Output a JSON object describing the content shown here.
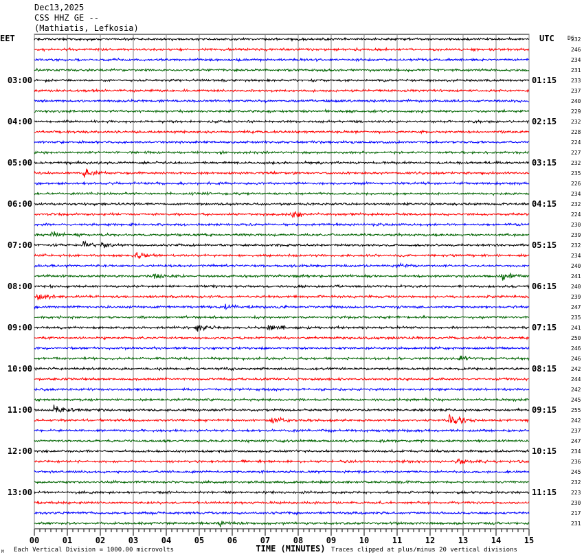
{
  "header": {
    "date": "Dec13,2025",
    "station": "CSS HHZ GE --",
    "location": "(Mathiatis, Lefkosia)"
  },
  "left_timezone": "EET",
  "right_timezone": "UTC",
  "dc_label": "DC",
  "footer": {
    "vertical_division": "Each Vertical Division = 1000.00 microvolts",
    "xlabel": "TIME (MINUTES)",
    "clip_note": "Traces clipped at plus/minus 20 vertical divisions",
    "corner_mark": "M"
  },
  "colors": {
    "trace_cycle": [
      "#000000",
      "#ff0000",
      "#0000ff",
      "#006400"
    ],
    "grid": "#808080"
  },
  "chart_data": {
    "type": "line",
    "description_kind": "helicorder",
    "x_ticks": [
      "00",
      "01",
      "02",
      "03",
      "04",
      "05",
      "06",
      "07",
      "08",
      "09",
      "10",
      "11",
      "12",
      "13",
      "14",
      "15"
    ],
    "xlim": [
      0,
      15
    ],
    "left_hour_labels": [
      "03:00",
      "04:00",
      "05:00",
      "06:00",
      "07:00",
      "08:00",
      "09:00",
      "10:00",
      "11:00",
      "12:00",
      "13:00"
    ],
    "right_hour_labels": [
      "01:15",
      "02:15",
      "03:15",
      "04:15",
      "05:15",
      "06:15",
      "07:15",
      "08:15",
      "09:15",
      "10:15",
      "11:15"
    ],
    "trace_count": 48,
    "dc_offsets": [
      232,
      246,
      234,
      231,
      233,
      237,
      240,
      229,
      232,
      228,
      224,
      227,
      232,
      235,
      226,
      234,
      232,
      224,
      230,
      239,
      232,
      234,
      240,
      241,
      240,
      239,
      247,
      235,
      241,
      250,
      246,
      246,
      242,
      244,
      242,
      245,
      255,
      242,
      237,
      247,
      234,
      236,
      245,
      232,
      223,
      230,
      217,
      231
    ],
    "events": [
      {
        "trace": 13,
        "minute": 1.5,
        "amp": 2.2
      },
      {
        "trace": 17,
        "minute": 7.8,
        "amp": 2.5
      },
      {
        "trace": 19,
        "minute": 0.5,
        "amp": 1.8
      },
      {
        "trace": 20,
        "minute": 1.5,
        "amp": 2.0
      },
      {
        "trace": 20,
        "minute": 2.0,
        "amp": 1.8
      },
      {
        "trace": 21,
        "minute": 3.1,
        "amp": 1.8
      },
      {
        "trace": 22,
        "minute": 11.0,
        "amp": 1.6
      },
      {
        "trace": 23,
        "minute": 3.6,
        "amp": 2.0
      },
      {
        "trace": 23,
        "minute": 14.2,
        "amp": 1.6
      },
      {
        "trace": 25,
        "minute": 0.1,
        "amp": 2.0
      },
      {
        "trace": 26,
        "minute": 5.8,
        "amp": 2.0
      },
      {
        "trace": 28,
        "minute": 4.9,
        "amp": 2.2
      },
      {
        "trace": 28,
        "minute": 7.1,
        "amp": 2.0
      },
      {
        "trace": 31,
        "minute": 12.9,
        "amp": 1.6
      },
      {
        "trace": 36,
        "minute": 0.6,
        "amp": 2.4
      },
      {
        "trace": 37,
        "minute": 12.6,
        "amp": 3.5
      },
      {
        "trace": 37,
        "minute": 7.2,
        "amp": 1.5
      },
      {
        "trace": 41,
        "minute": 12.8,
        "amp": 1.5
      },
      {
        "trace": 47,
        "minute": 5.6,
        "amp": 1.6
      }
    ]
  }
}
